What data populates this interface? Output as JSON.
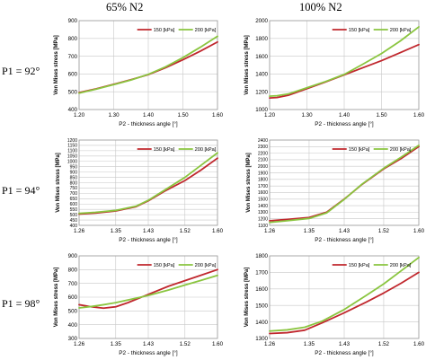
{
  "column_titles": [
    "65% N2",
    "100% N2"
  ],
  "row_labels": [
    "P1 = 92°",
    "P1 = 94°",
    "P1 = 98°"
  ],
  "colors": {
    "150": "#c0272d",
    "200": "#8ac53f"
  },
  "chart_data": [
    {
      "type": "line",
      "xlabel": "P2 - thickness angle [°]",
      "ylabel": "Von Mises stress [MPa]",
      "xlim": [
        1.2,
        1.6
      ],
      "ylim": [
        400,
        900
      ],
      "xticks": [
        1.2,
        1.3,
        1.4,
        1.5,
        1.6
      ],
      "xtick_labels": [
        "1.20",
        "1.30",
        "1.40",
        "1.50",
        "1.60"
      ],
      "yticks": [
        400,
        500,
        600,
        700,
        800,
        900
      ],
      "ytick_labels": [
        "400",
        "500",
        "600",
        "700",
        "800",
        "900"
      ],
      "legend": "top",
      "grid": true,
      "series": [
        {
          "name": "150 [kPa]",
          "x": [
            1.2,
            1.25,
            1.3,
            1.35,
            1.4,
            1.45,
            1.5,
            1.55,
            1.6
          ],
          "values": [
            495,
            517,
            542,
            568,
            596,
            635,
            680,
            728,
            780
          ]
        },
        {
          "name": "200 [kPa]",
          "x": [
            1.2,
            1.25,
            1.3,
            1.35,
            1.4,
            1.45,
            1.5,
            1.55,
            1.6
          ],
          "values": [
            492,
            515,
            540,
            566,
            598,
            640,
            692,
            750,
            812
          ]
        }
      ]
    },
    {
      "type": "line",
      "xlabel": "P2 - thickness angle [°]",
      "ylabel": "Von Mises stress [MPa]",
      "xlim": [
        1.2,
        1.6
      ],
      "ylim": [
        1000,
        2000
      ],
      "xticks": [
        1.2,
        1.3,
        1.4,
        1.5,
        1.6
      ],
      "xtick_labels": [
        "1.20",
        "1.30",
        "1.40",
        "1.50",
        "1.60"
      ],
      "yticks": [
        1000,
        1200,
        1400,
        1600,
        1800,
        2000
      ],
      "ytick_labels": [
        "1000",
        "1200",
        "1400",
        "1600",
        "1800",
        "2000"
      ],
      "legend": "top",
      "grid": true,
      "series": [
        {
          "name": "150 [kPa]",
          "x": [
            1.2,
            1.22,
            1.25,
            1.3,
            1.35,
            1.4,
            1.45,
            1.5,
            1.55,
            1.6
          ],
          "values": [
            1130,
            1135,
            1160,
            1235,
            1310,
            1390,
            1470,
            1550,
            1640,
            1730
          ]
        },
        {
          "name": "200 [kPa]",
          "x": [
            1.2,
            1.22,
            1.25,
            1.3,
            1.35,
            1.4,
            1.45,
            1.5,
            1.55,
            1.6
          ],
          "values": [
            1150,
            1155,
            1175,
            1245,
            1315,
            1395,
            1510,
            1630,
            1770,
            1930
          ]
        }
      ]
    },
    {
      "type": "line",
      "xlabel": "P2 - thickness angle [°]",
      "ylabel": "Von Mises stress [MPa]",
      "xlim": [
        1.26,
        1.6
      ],
      "ylim": [
        400,
        1200
      ],
      "xticks": [
        1.26,
        1.35,
        1.43,
        1.52,
        1.6
      ],
      "xtick_labels": [
        "1.26",
        "1.35",
        "1.43",
        "1.52",
        "1.60"
      ],
      "yticks": [
        400,
        450,
        500,
        550,
        600,
        650,
        700,
        750,
        800,
        850,
        900,
        950,
        1000,
        1050,
        1100,
        1150,
        1200
      ],
      "ytick_labels": [
        "400",
        "450",
        "500",
        "550",
        "600",
        "650",
        "700",
        "750",
        "800",
        "850",
        "900",
        "950",
        "1000",
        "1050",
        "1100",
        "1150",
        "1200"
      ],
      "legend": "top",
      "grid": true,
      "series": [
        {
          "name": "150 [kPa]",
          "x": [
            1.26,
            1.3,
            1.35,
            1.4,
            1.43,
            1.47,
            1.52,
            1.56,
            1.6
          ],
          "values": [
            505,
            515,
            535,
            575,
            630,
            720,
            820,
            920,
            1030
          ]
        },
        {
          "name": "200 [kPa]",
          "x": [
            1.26,
            1.3,
            1.35,
            1.4,
            1.43,
            1.47,
            1.52,
            1.56,
            1.6
          ],
          "values": [
            512,
            522,
            540,
            580,
            635,
            730,
            850,
            965,
            1080
          ]
        }
      ]
    },
    {
      "type": "line",
      "xlabel": "P2 - thickness angle [°]",
      "ylabel": "Von Mises stress [MPa]",
      "xlim": [
        1.26,
        1.6
      ],
      "ylim": [
        1100,
        2400
      ],
      "xticks": [
        1.26,
        1.35,
        1.43,
        1.52,
        1.6
      ],
      "xtick_labels": [
        "1.26",
        "1.35",
        "1.43",
        "1.52",
        "1.60"
      ],
      "yticks": [
        1100,
        1200,
        1300,
        1400,
        1500,
        1600,
        1700,
        1800,
        1900,
        2000,
        2100,
        2200,
        2300,
        2400
      ],
      "ytick_labels": [
        "1100",
        "1200",
        "1300",
        "1400",
        "1500",
        "1600",
        "1700",
        "1800",
        "1900",
        "2000",
        "2100",
        "2200",
        "2300",
        "2400"
      ],
      "legend": "top",
      "grid": true,
      "series": [
        {
          "name": "150 [kPa]",
          "x": [
            1.26,
            1.3,
            1.35,
            1.39,
            1.43,
            1.47,
            1.52,
            1.56,
            1.6
          ],
          "values": [
            1170,
            1190,
            1220,
            1300,
            1500,
            1720,
            1960,
            2120,
            2300
          ]
        },
        {
          "name": "200 [kPa]",
          "x": [
            1.26,
            1.3,
            1.35,
            1.39,
            1.43,
            1.47,
            1.52,
            1.56,
            1.6
          ],
          "values": [
            1145,
            1170,
            1205,
            1290,
            1495,
            1725,
            1970,
            2140,
            2320
          ]
        }
      ]
    },
    {
      "type": "line",
      "xlabel": "P2 - thickness angle [°]",
      "ylabel": "Von Mises stress [MPa]",
      "xlim": [
        1.26,
        1.6
      ],
      "ylim": [
        300,
        900
      ],
      "xticks": [
        1.26,
        1.35,
        1.43,
        1.52,
        1.6
      ],
      "xtick_labels": [
        "1.26",
        "1.35",
        "1.43",
        "1.52",
        "1.60"
      ],
      "yticks": [
        300,
        400,
        500,
        600,
        700,
        800,
        900
      ],
      "ytick_labels": [
        "300",
        "400",
        "500",
        "600",
        "700",
        "800",
        "900"
      ],
      "legend": "top",
      "grid": true,
      "series": [
        {
          "name": "150 [kPa]",
          "x": [
            1.26,
            1.29,
            1.32,
            1.35,
            1.38,
            1.43,
            1.48,
            1.52,
            1.56,
            1.6
          ],
          "values": [
            545,
            530,
            520,
            530,
            560,
            620,
            680,
            720,
            760,
            800
          ]
        },
        {
          "name": "200 [kPa]",
          "x": [
            1.26,
            1.29,
            1.32,
            1.35,
            1.38,
            1.43,
            1.48,
            1.52,
            1.56,
            1.6
          ],
          "values": [
            522,
            532,
            545,
            560,
            580,
            612,
            652,
            688,
            722,
            758
          ]
        }
      ]
    },
    {
      "type": "line",
      "xlabel": "P2 - thickness angle [°]",
      "ylabel": "Von Mises stress [MPa]",
      "xlim": [
        1.26,
        1.6
      ],
      "ylim": [
        1300,
        1800
      ],
      "xticks": [
        1.26,
        1.35,
        1.43,
        1.52,
        1.6
      ],
      "xtick_labels": [
        "1.26",
        "1.35",
        "1.43",
        "1.52",
        "1.60"
      ],
      "yticks": [
        1300,
        1400,
        1500,
        1600,
        1700,
        1800
      ],
      "ytick_labels": [
        "1300",
        "1400",
        "1500",
        "1600",
        "1700",
        "1800"
      ],
      "legend": "top",
      "grid": true,
      "series": [
        {
          "name": "150 [kPa]",
          "x": [
            1.26,
            1.3,
            1.34,
            1.38,
            1.43,
            1.48,
            1.52,
            1.56,
            1.6
          ],
          "values": [
            1330,
            1335,
            1350,
            1395,
            1455,
            1520,
            1575,
            1635,
            1700
          ]
        },
        {
          "name": "200 [kPa]",
          "x": [
            1.26,
            1.3,
            1.34,
            1.38,
            1.43,
            1.48,
            1.52,
            1.56,
            1.6
          ],
          "values": [
            1345,
            1352,
            1368,
            1405,
            1475,
            1560,
            1630,
            1710,
            1790
          ]
        }
      ]
    }
  ]
}
